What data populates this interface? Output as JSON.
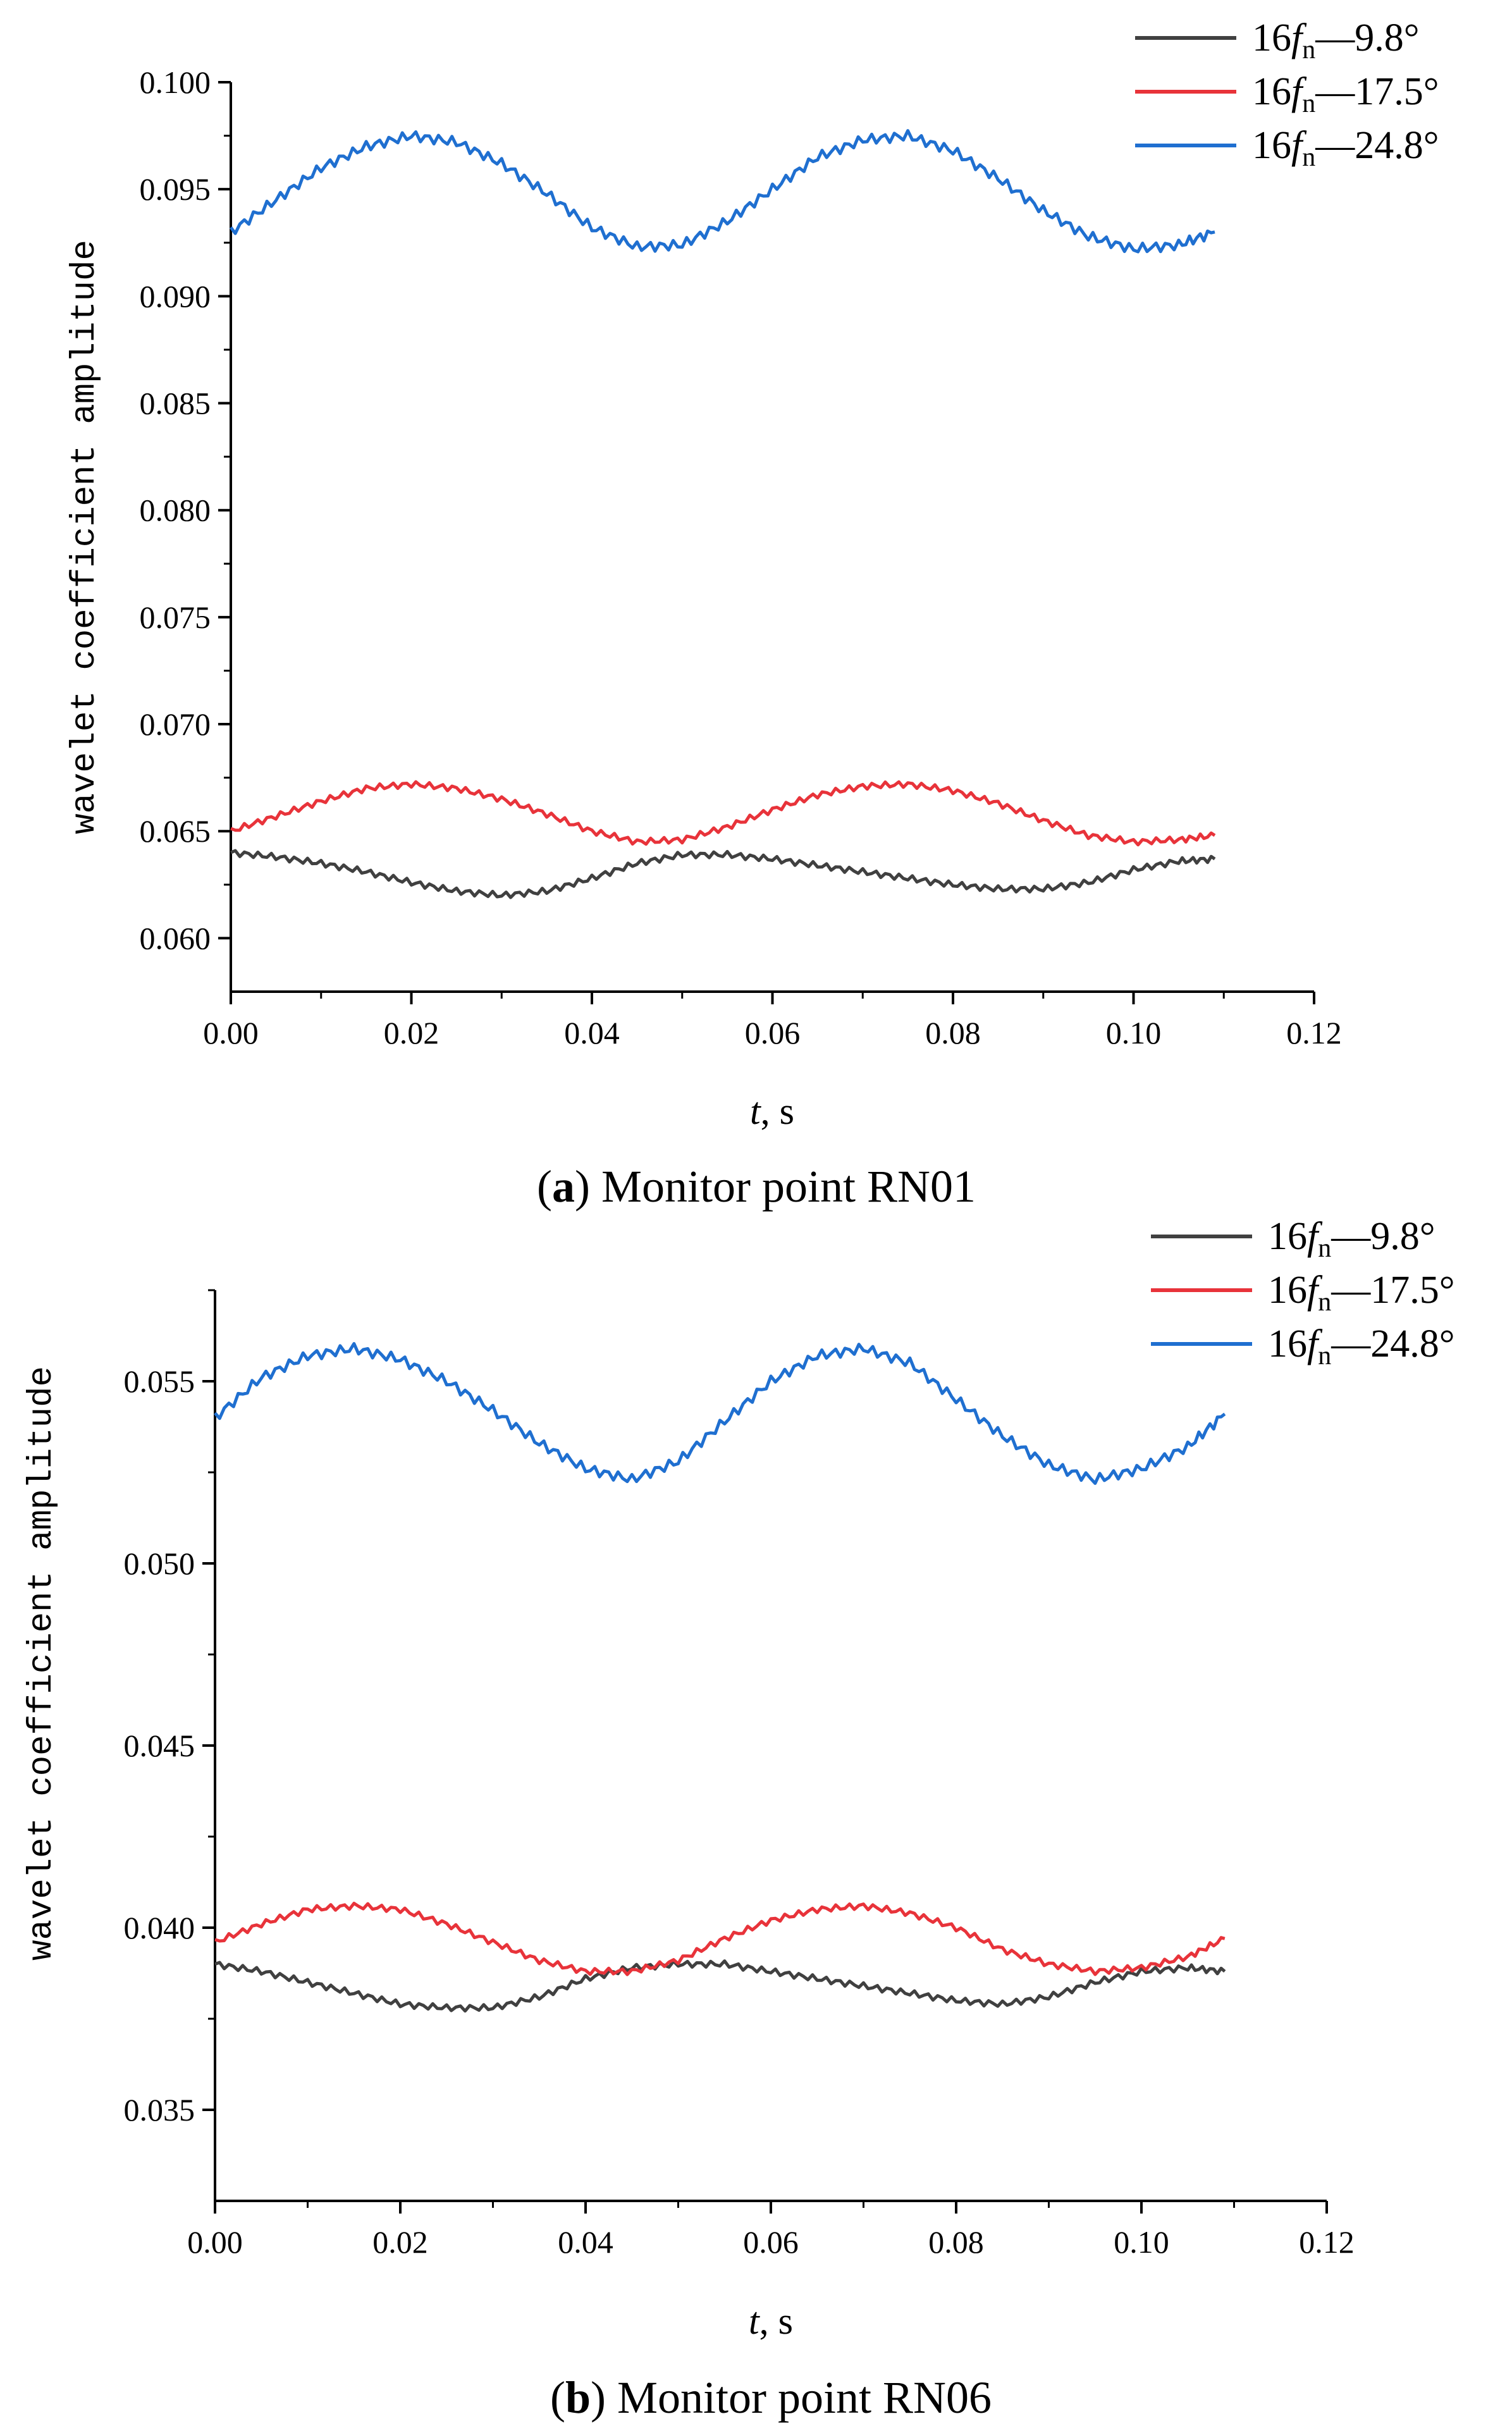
{
  "chart_data": [
    {
      "id": "a",
      "type": "line",
      "caption_letter": "a",
      "caption_text": "Monitor point RN01",
      "xlabel_var": "t",
      "xlabel_unit": ", s",
      "ylabel": "wavelet coefficient amplitude",
      "xlim": [
        0,
        0.12
      ],
      "ylim": [
        0.0575,
        0.1
      ],
      "xticks": [
        "0.00",
        "0.02",
        "0.04",
        "0.06",
        "0.08",
        "0.10",
        "0.12"
      ],
      "yticks": [
        "0.060",
        "0.065",
        "0.070",
        "0.075",
        "0.080",
        "0.085",
        "0.090",
        "0.095",
        "0.100"
      ],
      "legend_position": "top-right",
      "series": [
        {
          "name": "16fn—9.8°",
          "legend_prefix": "16",
          "legend_var": "f",
          "legend_sub": "n",
          "legend_suffix": "—9.8°",
          "color": "#404040",
          "x": [
            0.0,
            0.005,
            0.01,
            0.015,
            0.02,
            0.025,
            0.03,
            0.035,
            0.04,
            0.045,
            0.05,
            0.055,
            0.06,
            0.065,
            0.07,
            0.075,
            0.08,
            0.085,
            0.09,
            0.095,
            0.1,
            0.105,
            0.109
          ],
          "y": [
            0.064,
            0.0638,
            0.0635,
            0.0631,
            0.0626,
            0.0622,
            0.062,
            0.0622,
            0.0628,
            0.0635,
            0.0639,
            0.0639,
            0.0637,
            0.0634,
            0.0631,
            0.0628,
            0.0625,
            0.0623,
            0.0623,
            0.0626,
            0.0632,
            0.0636,
            0.0637
          ]
        },
        {
          "name": "16fn—17.5°",
          "legend_prefix": "16",
          "legend_var": "f",
          "legend_sub": "n",
          "legend_suffix": "—17.5°",
          "color": "#e8333a",
          "x": [
            0.0,
            0.005,
            0.01,
            0.015,
            0.02,
            0.025,
            0.03,
            0.035,
            0.04,
            0.045,
            0.05,
            0.055,
            0.06,
            0.065,
            0.07,
            0.075,
            0.08,
            0.085,
            0.09,
            0.095,
            0.1,
            0.105,
            0.109
          ],
          "y": [
            0.065,
            0.0657,
            0.0664,
            0.067,
            0.0672,
            0.067,
            0.0665,
            0.0658,
            0.065,
            0.0645,
            0.0646,
            0.0652,
            0.066,
            0.0667,
            0.0671,
            0.0672,
            0.0669,
            0.0663,
            0.0655,
            0.0648,
            0.0645,
            0.0646,
            0.0648
          ]
        },
        {
          "name": "16fn—24.8°",
          "legend_prefix": "16",
          "legend_var": "f",
          "legend_sub": "n",
          "legend_suffix": "—24.8°",
          "color": "#1f6fd0",
          "x": [
            0.0,
            0.005,
            0.01,
            0.015,
            0.02,
            0.025,
            0.03,
            0.035,
            0.04,
            0.045,
            0.05,
            0.055,
            0.06,
            0.065,
            0.07,
            0.075,
            0.08,
            0.085,
            0.09,
            0.095,
            0.1,
            0.105,
            0.109
          ],
          "y": [
            0.093,
            0.0945,
            0.096,
            0.097,
            0.0975,
            0.0972,
            0.0962,
            0.0948,
            0.0932,
            0.0923,
            0.0924,
            0.0935,
            0.095,
            0.0965,
            0.0973,
            0.0975,
            0.0968,
            0.0955,
            0.094,
            0.0928,
            0.0922,
            0.0924,
            0.093
          ]
        }
      ]
    },
    {
      "id": "b",
      "type": "line",
      "caption_letter": "b",
      "caption_text": "Monitor point RN06",
      "xlabel_var": "t",
      "xlabel_unit": ", s",
      "ylabel": "wavelet coefficient amplitude",
      "xlim": [
        0,
        0.12
      ],
      "ylim": [
        0.0325,
        0.0575
      ],
      "xticks": [
        "0.00",
        "0.02",
        "0.04",
        "0.06",
        "0.08",
        "0.10",
        "0.12"
      ],
      "yticks": [
        "0.035",
        "0.040",
        "0.045",
        "0.050",
        "0.055"
      ],
      "legend_position": "top-right",
      "series": [
        {
          "name": "16fn—9.8°",
          "legend_prefix": "16",
          "legend_var": "f",
          "legend_sub": "n",
          "legend_suffix": "—9.8°",
          "color": "#404040",
          "x": [
            0.0,
            0.005,
            0.01,
            0.015,
            0.02,
            0.025,
            0.03,
            0.035,
            0.04,
            0.045,
            0.05,
            0.055,
            0.06,
            0.065,
            0.07,
            0.075,
            0.08,
            0.085,
            0.09,
            0.095,
            0.1,
            0.105,
            0.109
          ],
          "y": [
            0.039,
            0.0388,
            0.0385,
            0.0382,
            0.0379,
            0.0378,
            0.0378,
            0.0381,
            0.0386,
            0.0389,
            0.039,
            0.039,
            0.0388,
            0.0386,
            0.0384,
            0.0382,
            0.038,
            0.0379,
            0.0381,
            0.0385,
            0.0388,
            0.0389,
            0.0388
          ]
        },
        {
          "name": "16fn—17.5°",
          "legend_prefix": "16",
          "legend_var": "f",
          "legend_sub": "n",
          "legend_suffix": "—17.5°",
          "color": "#e8333a",
          "x": [
            0.0,
            0.005,
            0.01,
            0.015,
            0.02,
            0.025,
            0.03,
            0.035,
            0.04,
            0.045,
            0.05,
            0.055,
            0.06,
            0.065,
            0.07,
            0.075,
            0.08,
            0.085,
            0.09,
            0.095,
            0.1,
            0.105,
            0.109
          ],
          "y": [
            0.0396,
            0.0401,
            0.0405,
            0.0406,
            0.0405,
            0.0401,
            0.0396,
            0.0391,
            0.0388,
            0.0388,
            0.0391,
            0.0397,
            0.0402,
            0.0405,
            0.0406,
            0.0404,
            0.04,
            0.0394,
            0.039,
            0.0388,
            0.0389,
            0.0392,
            0.0397
          ]
        },
        {
          "name": "16fn—24.8°",
          "legend_prefix": "16",
          "legend_var": "f",
          "legend_sub": "n",
          "legend_suffix": "—24.8°",
          "color": "#1f6fd0",
          "x": [
            0.0,
            0.005,
            0.01,
            0.015,
            0.02,
            0.025,
            0.03,
            0.035,
            0.04,
            0.045,
            0.05,
            0.055,
            0.06,
            0.065,
            0.07,
            0.075,
            0.08,
            0.085,
            0.09,
            0.095,
            0.1,
            0.105,
            0.109
          ],
          "y": [
            0.054,
            0.0551,
            0.0557,
            0.0559,
            0.0556,
            0.055,
            0.0542,
            0.0533,
            0.0526,
            0.0523,
            0.0528,
            0.0539,
            0.055,
            0.0557,
            0.0559,
            0.0555,
            0.0545,
            0.0535,
            0.0527,
            0.0523,
            0.0526,
            0.0532,
            0.0541
          ]
        }
      ]
    }
  ]
}
